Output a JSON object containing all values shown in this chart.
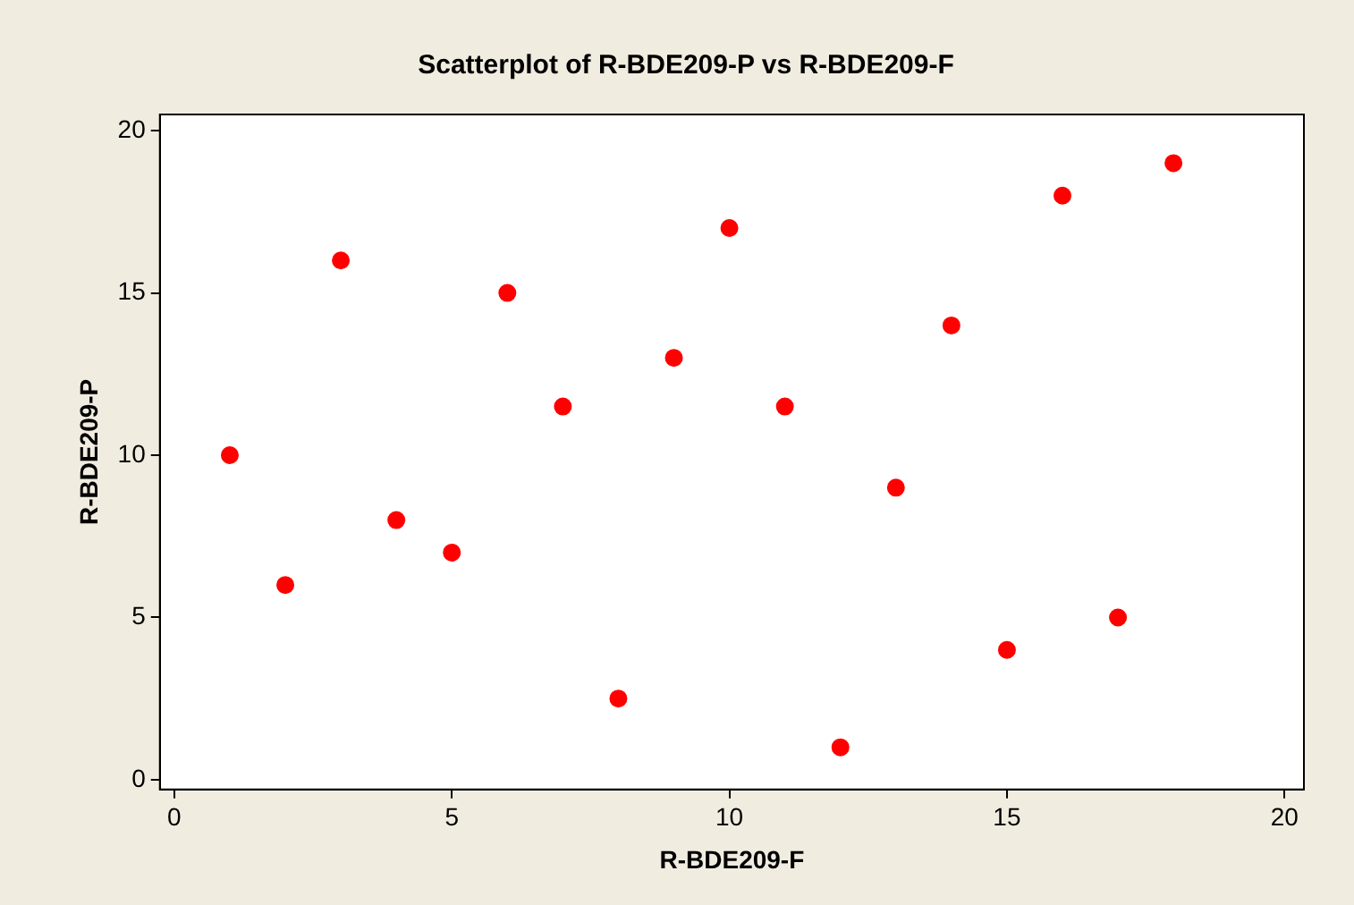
{
  "chart_data": {
    "type": "scatter",
    "title": "Scatterplot of R-BDE209-P vs R-BDE209-F",
    "xlabel": "R-BDE209-F",
    "ylabel": "R-BDE209-P",
    "x": [
      1,
      2,
      3,
      4,
      5,
      6,
      7,
      8,
      9,
      10,
      11,
      12,
      13,
      14,
      15,
      16,
      17,
      18
    ],
    "series": [
      {
        "color": "#ff0000",
        "values": [
          10,
          6,
          16,
          8,
          7,
          15,
          11.5,
          2.5,
          13,
          17,
          11.5,
          1,
          9,
          14,
          4,
          18,
          5,
          19
        ]
      }
    ],
    "xlim": [
      -0.26,
      20.35
    ],
    "xticks": [
      0,
      5,
      10,
      15,
      20
    ],
    "ylim": [
      -0.3,
      20.5
    ],
    "yticks": [
      0,
      5,
      10,
      15,
      20
    ],
    "grid": false,
    "legend": false,
    "marker": "circle"
  }
}
